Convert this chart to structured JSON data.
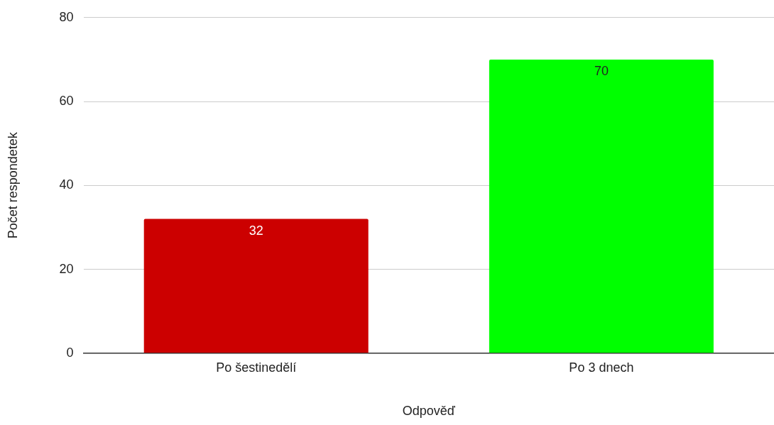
{
  "chart_data": {
    "type": "bar",
    "xlabel": "Odpověď",
    "ylabel": "Počet respondetek",
    "categories": [
      "Po šestinedělí",
      "Po 3 dnech"
    ],
    "values": [
      32,
      70
    ],
    "colors": [
      "#cc0000",
      "#00ff00"
    ],
    "ylim": [
      0,
      80
    ],
    "yticks": [
      0,
      20,
      40,
      60,
      80
    ],
    "grid": "y",
    "data_labels": true
  }
}
